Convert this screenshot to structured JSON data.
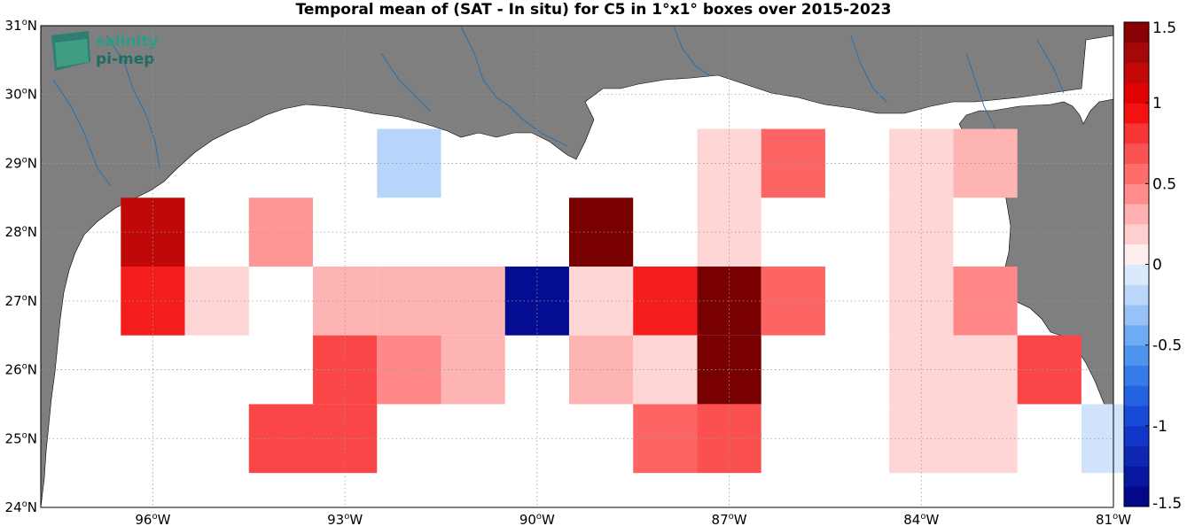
{
  "title": "Temporal mean of (SAT - In situ) for C5 in 1°x1° boxes over 2015-2023",
  "logo": {
    "line1": "salinity",
    "line2": "pi-mep"
  },
  "axes": {
    "lon_ticks": [
      {
        "value": -96,
        "label": "96",
        "suffix": "W"
      },
      {
        "value": -93,
        "label": "93",
        "suffix": "W"
      },
      {
        "value": -90,
        "label": "90",
        "suffix": "W"
      },
      {
        "value": -87,
        "label": "87",
        "suffix": "W"
      },
      {
        "value": -84,
        "label": "84",
        "suffix": "W"
      },
      {
        "value": -81,
        "label": "81",
        "suffix": "W"
      }
    ],
    "lat_ticks": [
      {
        "value": 24,
        "label": "24",
        "suffix": "N"
      },
      {
        "value": 25,
        "label": "25",
        "suffix": "N"
      },
      {
        "value": 26,
        "label": "26",
        "suffix": "N"
      },
      {
        "value": 27,
        "label": "27",
        "suffix": "N"
      },
      {
        "value": 28,
        "label": "28",
        "suffix": "N"
      },
      {
        "value": 29,
        "label": "29",
        "suffix": "N"
      },
      {
        "value": 30,
        "label": "30",
        "suffix": "N"
      },
      {
        "value": 31,
        "label": "31",
        "suffix": "N"
      }
    ],
    "lon_range": [
      -97.75,
      -81
    ],
    "lat_range": [
      24,
      31
    ]
  },
  "colorbar": {
    "range": [
      -1.5,
      1.5
    ],
    "tick_labels": [
      "1.5",
      "1",
      "0.5",
      "0",
      "-0.5",
      "-1",
      "-1.5"
    ],
    "tick_values": [
      1.5,
      1,
      0.5,
      0,
      -0.5,
      -1,
      -1.5
    ]
  },
  "colors": {
    "land": "#7f7f7f",
    "rivers": "#1f6fb2",
    "ocean": "#ffffff"
  },
  "chart_data": {
    "type": "heatmap",
    "title": "Temporal mean of (SAT - In situ) for C5 in 1°x1° boxes over 2015-2023",
    "xlabel": "",
    "ylabel": "",
    "grid": true,
    "cells": [
      {
        "lon": -96,
        "lat": 28,
        "value": 1.2
      },
      {
        "lon": -96,
        "lat": 27,
        "value": 0.9
      },
      {
        "lon": -95,
        "lat": 27,
        "value": 0.15
      },
      {
        "lon": -94,
        "lat": 28,
        "value": 0.4
      },
      {
        "lon": -92,
        "lat": 29,
        "value": -0.2
      },
      {
        "lon": -93,
        "lat": 27,
        "value": 0.3
      },
      {
        "lon": -92,
        "lat": 27,
        "value": 0.3
      },
      {
        "lon": -91,
        "lat": 27,
        "value": 0.3
      },
      {
        "lon": -90,
        "lat": 27,
        "value": -1.4
      },
      {
        "lon": -89,
        "lat": 28,
        "value": 1.5
      },
      {
        "lon": -89,
        "lat": 27,
        "value": 0.15
      },
      {
        "lon": -88,
        "lat": 27,
        "value": 0.9
      },
      {
        "lon": -87,
        "lat": 29,
        "value": 0.15
      },
      {
        "lon": -87,
        "lat": 28,
        "value": 0.15
      },
      {
        "lon": -87,
        "lat": 27,
        "value": 1.5
      },
      {
        "lon": -87,
        "lat": 26,
        "value": 1.5
      },
      {
        "lon": -87,
        "lat": 25,
        "value": 0.7
      },
      {
        "lon": -86,
        "lat": 29,
        "value": 0.6
      },
      {
        "lon": -86,
        "lat": 27,
        "value": 0.6
      },
      {
        "lon": -84,
        "lat": 29,
        "value": 0.15
      },
      {
        "lon": -84,
        "lat": 28,
        "value": 0.15
      },
      {
        "lon": -84,
        "lat": 27,
        "value": 0.15
      },
      {
        "lon": -84,
        "lat": 26,
        "value": 0.15
      },
      {
        "lon": -84,
        "lat": 25,
        "value": 0.15
      },
      {
        "lon": -83,
        "lat": 29,
        "value": 0.3
      },
      {
        "lon": -83,
        "lat": 27,
        "value": 0.45
      },
      {
        "lon": -83,
        "lat": 26,
        "value": 0.15
      },
      {
        "lon": -83,
        "lat": 25,
        "value": 0.15
      },
      {
        "lon": -82,
        "lat": 26,
        "value": 0.75
      },
      {
        "lon": -81,
        "lat": 25,
        "value": -0.1
      },
      {
        "lon": -93,
        "lat": 26,
        "value": 0.75
      },
      {
        "lon": -92,
        "lat": 26,
        "value": 0.45
      },
      {
        "lon": -91,
        "lat": 26,
        "value": 0.3
      },
      {
        "lon": -94,
        "lat": 25,
        "value": 0.75
      },
      {
        "lon": -93,
        "lat": 25,
        "value": 0.75
      },
      {
        "lon": -89,
        "lat": 26,
        "value": 0.3
      },
      {
        "lon": -88,
        "lat": 26,
        "value": 0.15
      },
      {
        "lon": -88,
        "lat": 25,
        "value": 0.6
      }
    ]
  }
}
